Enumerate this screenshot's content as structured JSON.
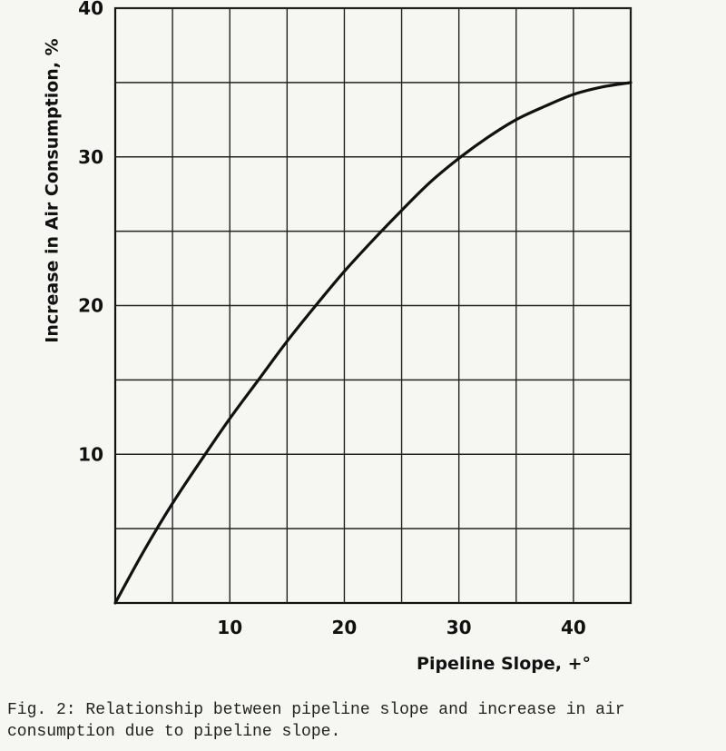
{
  "chart_data": {
    "type": "line",
    "xlabel": "Pipeline Slope, +°",
    "ylabel": "Increase in Air Consumption, %",
    "xlim": [
      0,
      45
    ],
    "ylim": [
      0,
      40
    ],
    "x_ticks": [
      10,
      20,
      30,
      40
    ],
    "y_ticks": [
      10,
      20,
      30,
      40
    ],
    "x_gridlines": [
      5,
      10,
      15,
      20,
      25,
      30,
      35,
      40,
      45
    ],
    "y_gridlines": [
      5,
      10,
      15,
      20,
      25,
      30,
      35,
      40
    ],
    "grid": true,
    "legend": "none",
    "series": [
      {
        "color": "#111111",
        "x": [
          0,
          2.5,
          5,
          7.5,
          10,
          12.5,
          15,
          17.5,
          20,
          22.5,
          25,
          27.5,
          30,
          32.5,
          35,
          37.5,
          40,
          42.5,
          45
        ],
        "y": [
          0,
          3.5,
          6.7,
          9.6,
          12.4,
          15.0,
          17.6,
          20.0,
          22.3,
          24.4,
          26.4,
          28.3,
          29.9,
          31.3,
          32.5,
          33.4,
          34.2,
          34.7,
          35.0
        ]
      }
    ]
  },
  "caption": "Fig. 2: Relationship between pipeline slope and increase in air\nconsumption due to pipeline slope."
}
